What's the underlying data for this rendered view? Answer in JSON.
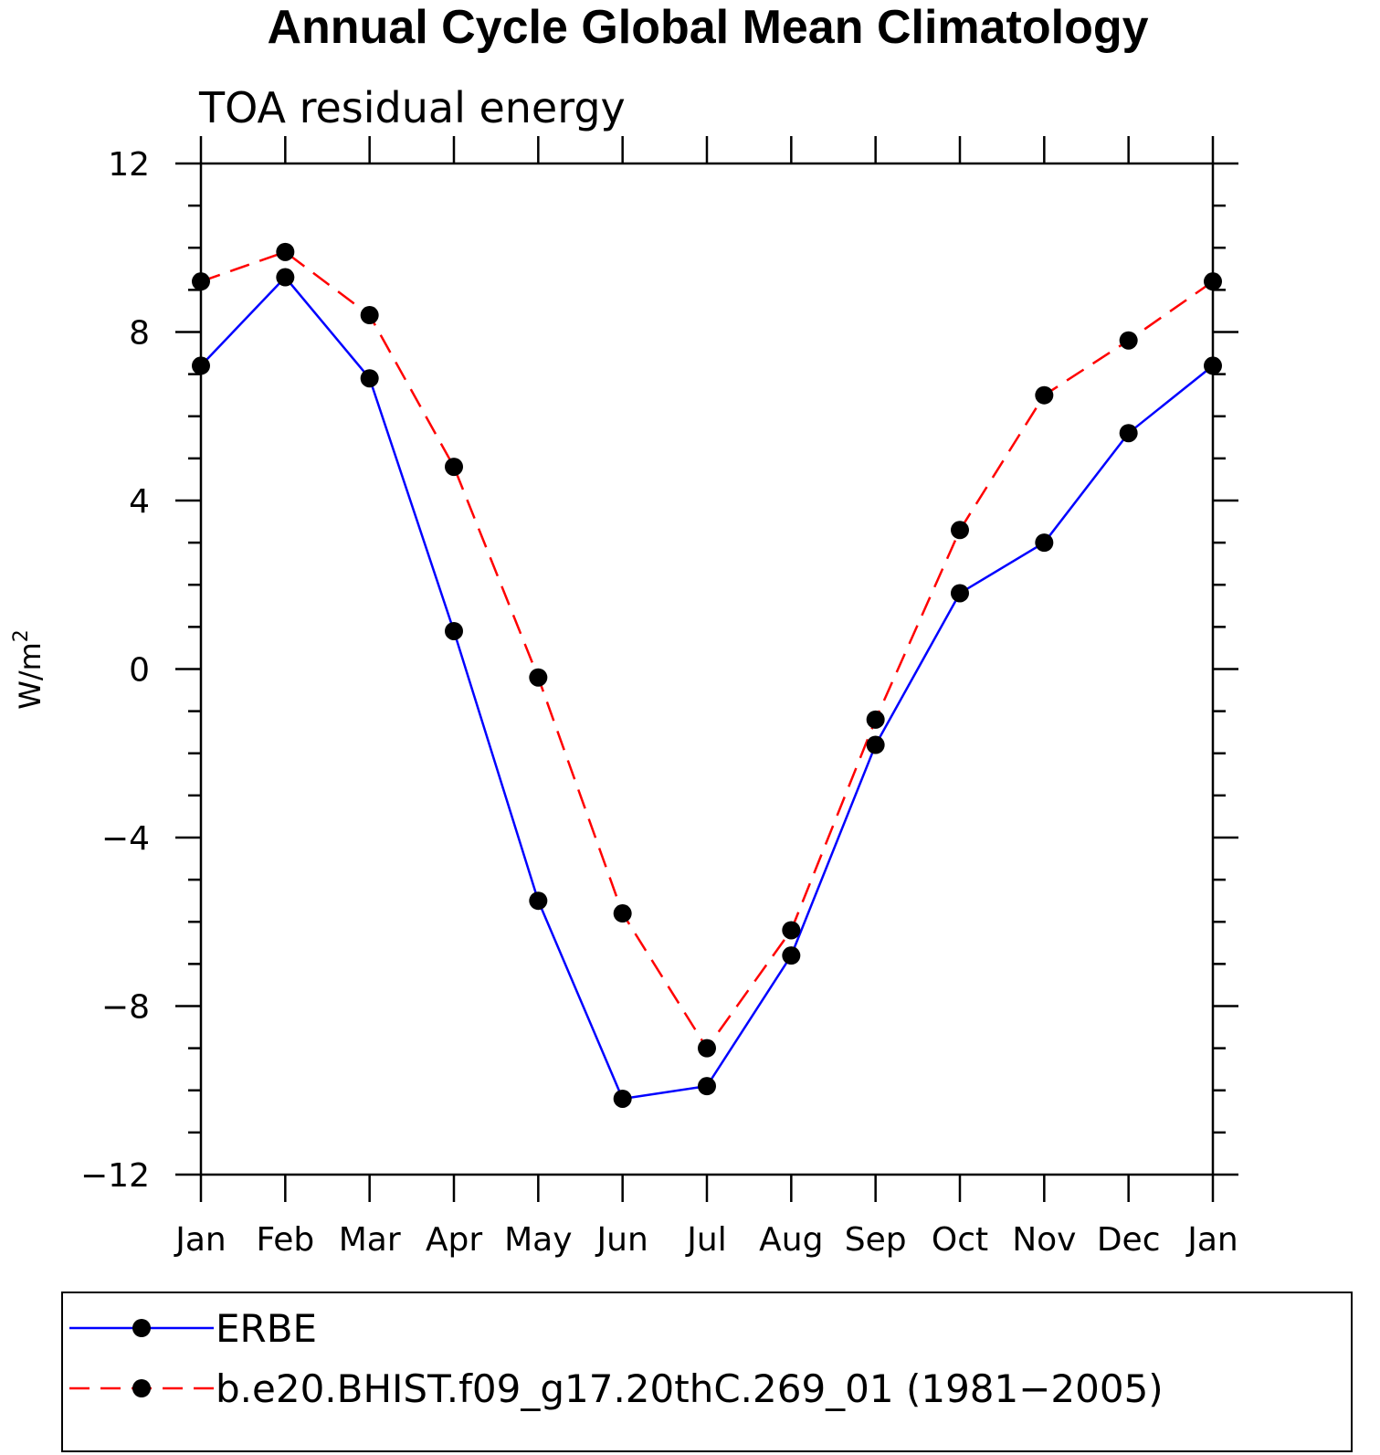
{
  "chart_data": {
    "type": "line",
    "title": "Annual Cycle Global Mean Climatology",
    "subtitle": "TOA residual energy",
    "ylabel": "W/m",
    "ylabel_superscript": "2",
    "categories": [
      "Jan",
      "Feb",
      "Mar",
      "Apr",
      "May",
      "Jun",
      "Jul",
      "Aug",
      "Sep",
      "Oct",
      "Nov",
      "Dec",
      "Jan"
    ],
    "ylim": [
      -12,
      12
    ],
    "yticks": [
      -12,
      -8,
      -4,
      0,
      4,
      8,
      12
    ],
    "ytick_labels": [
      "−12",
      "−8",
      "−4",
      "0",
      "4",
      "8",
      "12"
    ],
    "grid": false,
    "legend_position": "bottom",
    "series": [
      {
        "name": "ERBE",
        "color": "#0000ff",
        "line_style": "solid",
        "marker": "filled-circle",
        "values": [
          7.2,
          9.3,
          6.9,
          0.9,
          -5.5,
          -10.2,
          -9.9,
          -6.8,
          -1.8,
          1.8,
          3.0,
          5.6,
          7.2
        ]
      },
      {
        "name": "b.e20.BHIST.f09_g17.20thC.269_01 (1981−2005)",
        "color": "#ff0000",
        "line_style": "dashed",
        "marker": "filled-circle",
        "values": [
          9.2,
          9.9,
          8.4,
          4.8,
          -0.2,
          -5.8,
          -9.0,
          -6.2,
          -1.2,
          3.3,
          6.5,
          7.8,
          9.2
        ]
      }
    ]
  }
}
